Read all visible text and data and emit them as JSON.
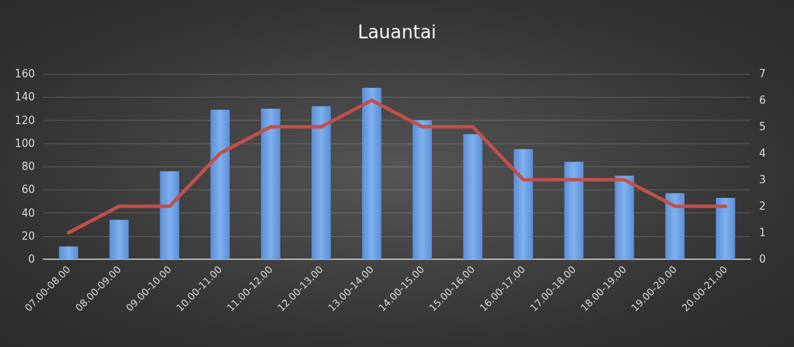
{
  "chart_data": {
    "type": "bar",
    "title": "Lauantai",
    "categories": [
      "07.00-08.00",
      "08.00-09.00",
      "09.00-10.00",
      "10.00-11.00",
      "11.00-12.00",
      "12.00-13.00",
      "13.00-14.00",
      "14.00-15.00",
      "15.00-16.00",
      "16.00-17.00",
      "17.00-18.00",
      "18.00-19.00",
      "19.00-20.00",
      "20.00-21.00"
    ],
    "series": [
      {
        "color": "#5b8fd6",
        "values": [
          11,
          34,
          76,
          129,
          130,
          132,
          148,
          120,
          108,
          95,
          84,
          72,
          57,
          53
        ]
      },
      {
        "type": "line",
        "axis": "y2",
        "color": "#c0504d",
        "values": [
          1,
          2,
          2,
          4,
          5,
          5,
          6,
          5,
          5,
          3,
          3,
          3,
          2,
          2
        ]
      }
    ],
    "ylim": [
      0,
      160
    ],
    "yticks": [
      0,
      20,
      40,
      60,
      80,
      100,
      120,
      140,
      160
    ],
    "y2lim": [
      0,
      7
    ],
    "y2ticks": [
      0,
      1,
      2,
      3,
      4,
      5,
      6,
      7
    ],
    "grid": "y",
    "marker": "none",
    "line_style": "solid"
  }
}
